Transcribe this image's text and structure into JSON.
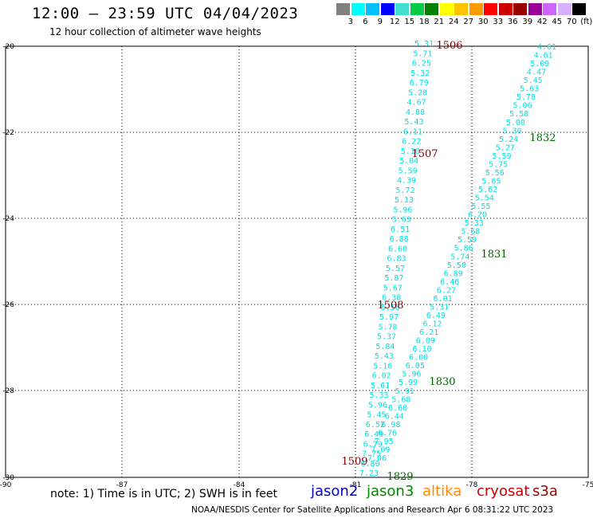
{
  "title": "12:00 – 23:59 UTC 04/04/2023",
  "subtitle": "12 hour collection of altimeter wave heights",
  "legend": {
    "colors": [
      "#808080",
      "#00ffff",
      "#00bfff",
      "#0000ff",
      "#40e0d0",
      "#00cc44",
      "#008000",
      "#ffff00",
      "#ffc400",
      "#ff9900",
      "#ff0000",
      "#cc0000",
      "#990000",
      "#990099",
      "#cc66ff",
      "#d8b0ff",
      "#000000"
    ],
    "labels": [
      "3",
      "6",
      "9",
      "12",
      "15",
      "18",
      "21",
      "24",
      "27",
      "30",
      "33",
      "36",
      "39",
      "42",
      "45",
      "70",
      "(ft)"
    ]
  },
  "axes": {
    "lon_labels": [
      "-90",
      "-87",
      "-84",
      "-81",
      "-78",
      "-75"
    ],
    "lat_labels": [
      "-20",
      "-22",
      "-24",
      "-26",
      "-28",
      "-30"
    ]
  },
  "track_colors": {
    "heights": "#00e0e0",
    "time_left": "#800000",
    "time_right": "#006600"
  },
  "left_track": {
    "heights": [
      "5.31",
      "5.71",
      "6.25",
      "5.32",
      "6.79",
      "5.28",
      "4.67",
      "4.88",
      "5.43",
      "6.11",
      "6.22",
      "5.10",
      "5.04",
      "5.59",
      "4.39",
      "5.72",
      "5.13",
      "5.96",
      "5.63",
      "6.51",
      "6.88",
      "6.60",
      "6.83",
      "5.57",
      "5.87",
      "5.67",
      "6.38",
      "5.56",
      "5.97",
      "5.78",
      "5.37",
      "5.84",
      "5.43",
      "5.16",
      "6.02",
      "5.61",
      "5.33",
      "5.96",
      "5.45",
      "6.52",
      "6.49",
      "6.79",
      "7.75",
      "6.80",
      "7.23"
    ],
    "times": [
      "1506",
      "1507",
      "1508",
      "1509"
    ]
  },
  "right_track": {
    "heights": [
      "4.61",
      "4.61",
      "5.09",
      "4.47",
      "5.45",
      "5.63",
      "5.78",
      "5.06",
      "5.58",
      "5.00",
      "5.30",
      "5.24",
      "5.27",
      "5.59",
      "5.75",
      "5.56",
      "5.65",
      "5.62",
      "5.54",
      "5.55",
      "6.20",
      "5.33",
      "5.68",
      "5.59",
      "5.86",
      "5.74",
      "5.50",
      "6.89",
      "6.46",
      "6.27",
      "6.01",
      "5.31",
      "6.49",
      "6.12",
      "6.21",
      "6.09",
      "6.10",
      "6.00",
      "6.05",
      "5.96",
      "5.99",
      "5.91",
      "5.68",
      "6.60",
      "6.44",
      "6.98",
      "6.76",
      "7.95",
      "7.09",
      "7.06"
    ],
    "times": [
      "1832",
      "1831",
      "1830",
      "1829"
    ]
  },
  "footer": {
    "note": "note:  1) Time is in UTC;  2) SWH is in feet",
    "satellites": [
      {
        "name": "jason2",
        "color": "#0000cc"
      },
      {
        "name": "jason3",
        "color": "#008800"
      },
      {
        "name": "altika",
        "color": "#ff8800"
      },
      {
        "name": "cryosat",
        "color": "#cc0000"
      },
      {
        "name": "s3a",
        "color": "#990000"
      }
    ],
    "credit": "NOAA/NESDIS Center for Satellite Applications and Research   Apr  6 08:31:22 UTC 2023"
  }
}
